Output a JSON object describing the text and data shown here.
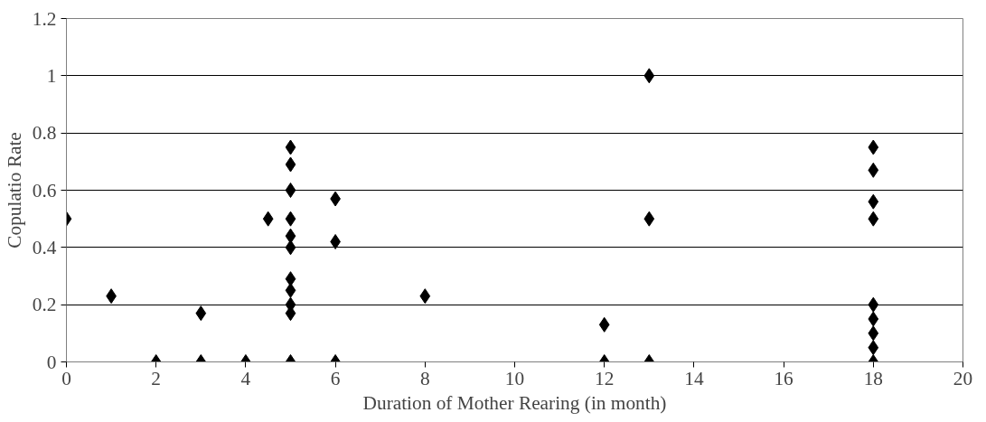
{
  "chart_data": {
    "type": "scatter",
    "xlabel": "Duration of Mother Rearing (in month)",
    "ylabel": "Copulatio Rate",
    "x": [
      0,
      1,
      2,
      3,
      3,
      4,
      4.5,
      5,
      5,
      5,
      5,
      5,
      5,
      5,
      5,
      5,
      5,
      5,
      6,
      6,
      6,
      8,
      12,
      12,
      13,
      13,
      13,
      18,
      18,
      18,
      18,
      18,
      18,
      18,
      18,
      18
    ],
    "values": [
      0.5,
      0.23,
      0,
      0.17,
      0,
      0,
      0.5,
      0.75,
      0.69,
      0.6,
      0.5,
      0.44,
      0.4,
      0.29,
      0.25,
      0.2,
      0.17,
      0,
      0.57,
      0.42,
      0,
      0.23,
      0.13,
      0,
      1,
      0.5,
      0,
      0.75,
      0.67,
      0.56,
      0.5,
      0.2,
      0.15,
      0.1,
      0.05,
      0
    ],
    "color": "#000000",
    "marker": "diamond",
    "xlim": [
      0,
      20
    ],
    "xticks": [
      0,
      2,
      4,
      6,
      8,
      10,
      12,
      14,
      16,
      18,
      20
    ],
    "ylim": [
      0,
      1.2
    ],
    "yticks": [
      0,
      0.2,
      0.4,
      0.6,
      0.8,
      1,
      1.2
    ],
    "grid": "y"
  }
}
